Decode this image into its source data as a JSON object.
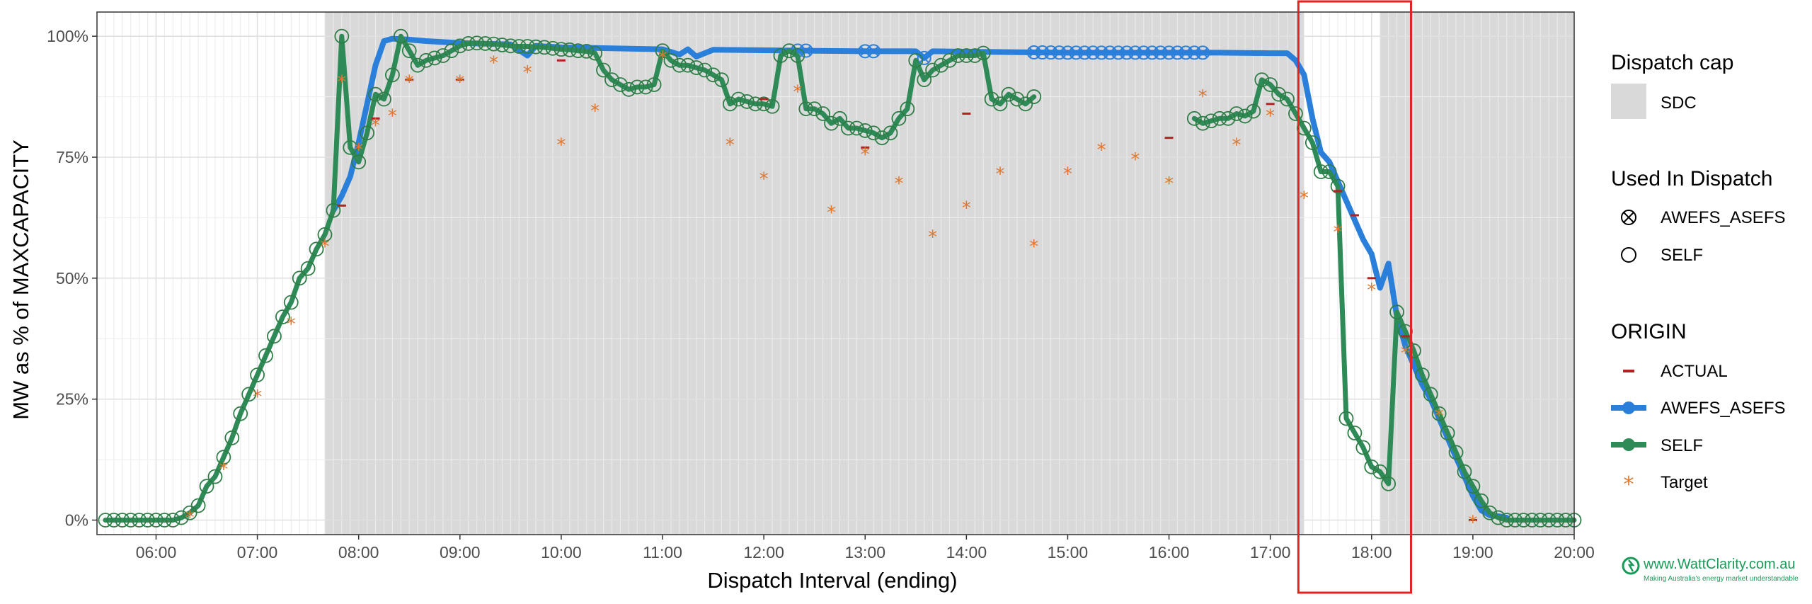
{
  "chart_data": {
    "type": "line",
    "title": "",
    "xlabel": "Dispatch Interval (ending)",
    "ylabel": "MW as % of MAXCAPACITY",
    "x_ticks": [
      "06:00",
      "07:00",
      "08:00",
      "09:00",
      "10:00",
      "11:00",
      "12:00",
      "13:00",
      "14:00",
      "15:00",
      "16:00",
      "17:00",
      "18:00",
      "19:00",
      "20:00"
    ],
    "y_ticks": [
      "0%",
      "25%",
      "50%",
      "75%",
      "100%"
    ],
    "xlim": [
      "05:25",
      "20:00"
    ],
    "ylim": [
      -3,
      105
    ],
    "dispatch_cap_shading": [
      {
        "label": "SDC",
        "start": "07:40",
        "end": "17:20"
      },
      {
        "label": "SDC",
        "start": "18:05",
        "end": "20:00"
      }
    ],
    "series": [
      {
        "name": "AWEFS_ASEFS",
        "color": "#2a7fdb",
        "points": [
          [
            "07:45",
            64
          ],
          [
            "07:50",
            67
          ],
          [
            "07:55",
            71
          ],
          [
            "08:00",
            78
          ],
          [
            "08:05",
            86
          ],
          [
            "08:10",
            94
          ],
          [
            "08:15",
            99
          ],
          [
            "08:20",
            99.5
          ],
          [
            "08:30",
            99.3
          ],
          [
            "08:40",
            99
          ],
          [
            "08:50",
            98.8
          ],
          [
            "09:00",
            98.6
          ],
          [
            "09:30",
            98.3
          ],
          [
            "09:40",
            96
          ],
          [
            "09:45",
            98
          ],
          [
            "10:00",
            97.7
          ],
          [
            "10:30",
            97.5
          ],
          [
            "11:00",
            97.3
          ],
          [
            "11:10",
            96.2
          ],
          [
            "11:15",
            97.3
          ],
          [
            "11:20",
            95.8
          ],
          [
            "11:30",
            97.2
          ],
          [
            "12:00",
            97.1
          ],
          [
            "12:30",
            97
          ],
          [
            "13:00",
            96.9
          ],
          [
            "13:30",
            96.9
          ],
          [
            "13:35",
            95.5
          ],
          [
            "13:40",
            96.9
          ],
          [
            "14:00",
            96.8
          ],
          [
            "14:30",
            96.7
          ],
          [
            "15:00",
            96.6
          ],
          [
            "15:30",
            96.6
          ],
          [
            "16:00",
            96.6
          ],
          [
            "16:30",
            96.6
          ],
          [
            "17:00",
            96.5
          ],
          [
            "17:10",
            96.5
          ],
          [
            "17:15",
            95
          ],
          [
            "17:20",
            92
          ],
          [
            "17:25",
            83
          ],
          [
            "17:30",
            76
          ],
          [
            "17:35",
            74
          ],
          [
            "17:40",
            70
          ],
          [
            "17:45",
            66
          ],
          [
            "17:50",
            62
          ],
          [
            "17:55",
            58
          ],
          [
            "18:00",
            55
          ],
          [
            "18:05",
            48
          ],
          [
            "18:10",
            53
          ],
          [
            "18:15",
            42
          ],
          [
            "18:20",
            36
          ],
          [
            "18:25",
            32
          ],
          [
            "18:30",
            28
          ],
          [
            "18:35",
            25
          ],
          [
            "18:40",
            21
          ],
          [
            "18:45",
            17
          ],
          [
            "18:50",
            13
          ],
          [
            "18:55",
            9
          ],
          [
            "19:00",
            5
          ],
          [
            "19:05",
            2
          ],
          [
            "19:10",
            1
          ],
          [
            "19:15",
            0.8
          ],
          [
            "19:20",
            0.5
          ]
        ]
      },
      {
        "name": "SELF",
        "color": "#2e8b57",
        "points": [
          [
            "05:30",
            0
          ],
          [
            "05:35",
            0
          ],
          [
            "05:40",
            0
          ],
          [
            "05:45",
            0
          ],
          [
            "05:50",
            0
          ],
          [
            "05:55",
            0
          ],
          [
            "06:00",
            0
          ],
          [
            "06:05",
            0
          ],
          [
            "06:10",
            0
          ],
          [
            "06:15",
            0.5
          ],
          [
            "06:20",
            1.5
          ],
          [
            "06:25",
            3
          ],
          [
            "06:30",
            7
          ],
          [
            "06:35",
            9
          ],
          [
            "06:40",
            13
          ],
          [
            "06:45",
            17
          ],
          [
            "06:50",
            22
          ],
          [
            "06:55",
            26
          ],
          [
            "07:00",
            30
          ],
          [
            "07:05",
            34
          ],
          [
            "07:10",
            38
          ],
          [
            "07:15",
            42
          ],
          [
            "07:20",
            45
          ],
          [
            "07:25",
            50
          ],
          [
            "07:30",
            52
          ],
          [
            "07:35",
            56
          ],
          [
            "07:40",
            59
          ],
          [
            "07:45",
            64
          ],
          [
            "07:50",
            100
          ],
          [
            "07:55",
            77
          ],
          [
            "08:00",
            74
          ],
          [
            "08:05",
            80
          ],
          [
            "08:10",
            88
          ],
          [
            "08:15",
            87
          ],
          [
            "08:20",
            92
          ],
          [
            "08:25",
            100
          ],
          [
            "08:30",
            97
          ],
          [
            "08:35",
            94
          ],
          [
            "08:40",
            95
          ],
          [
            "08:45",
            95.5
          ],
          [
            "08:50",
            96
          ],
          [
            "08:55",
            97
          ],
          [
            "09:00",
            98
          ],
          [
            "09:05",
            98.5
          ],
          [
            "09:10",
            98.6
          ],
          [
            "09:15",
            98.5
          ],
          [
            "09:20",
            98.4
          ],
          [
            "09:25",
            98.2
          ],
          [
            "09:30",
            98
          ],
          [
            "09:35",
            97.9
          ],
          [
            "09:40",
            97.9
          ],
          [
            "09:45",
            97.8
          ],
          [
            "09:50",
            97.7
          ],
          [
            "09:55",
            97.5
          ],
          [
            "10:00",
            97.3
          ],
          [
            "10:05",
            97.2
          ],
          [
            "10:10",
            97
          ],
          [
            "10:15",
            96.9
          ],
          [
            "10:20",
            96.5
          ],
          [
            "10:25",
            93
          ],
          [
            "10:30",
            91
          ],
          [
            "10:35",
            90
          ],
          [
            "10:40",
            89
          ],
          [
            "10:45",
            89.5
          ],
          [
            "10:50",
            89.5
          ],
          [
            "10:55",
            90
          ],
          [
            "11:00",
            97
          ],
          [
            "11:05",
            95
          ],
          [
            "11:10",
            94
          ],
          [
            "11:15",
            94
          ],
          [
            "11:20",
            93.5
          ],
          [
            "11:25",
            93
          ],
          [
            "11:30",
            92
          ],
          [
            "11:35",
            91
          ],
          [
            "11:40",
            86
          ],
          [
            "11:45",
            87
          ],
          [
            "11:50",
            86.5
          ],
          [
            "11:55",
            86
          ],
          [
            "12:00",
            86
          ],
          [
            "12:05",
            85.5
          ],
          [
            "12:10",
            96
          ],
          [
            "12:15",
            97
          ],
          [
            "12:20",
            96
          ],
          [
            "12:25",
            85
          ],
          [
            "12:30",
            85
          ],
          [
            "12:35",
            84
          ],
          [
            "12:40",
            82
          ],
          [
            "12:45",
            83
          ],
          [
            "12:50",
            81
          ],
          [
            "12:55",
            81
          ],
          [
            "13:00",
            80.5
          ],
          [
            "13:05",
            80
          ],
          [
            "13:10",
            79
          ],
          [
            "13:15",
            80
          ],
          [
            "13:20",
            83
          ],
          [
            "13:25",
            85
          ],
          [
            "13:30",
            95
          ],
          [
            "13:35",
            91
          ],
          [
            "13:40",
            93
          ],
          [
            "13:45",
            94
          ],
          [
            "13:50",
            95
          ],
          [
            "13:55",
            96
          ],
          [
            "14:00",
            96
          ],
          [
            "14:05",
            96
          ],
          [
            "14:10",
            96.5
          ],
          [
            "14:15",
            87
          ],
          [
            "14:20",
            86
          ],
          [
            "14:25",
            88
          ],
          [
            "14:30",
            87
          ],
          [
            "14:35",
            86
          ],
          [
            "14:40",
            87.5
          ]
        ]
      },
      {
        "name": "SELF",
        "color": "#2e8b57",
        "points": [
          [
            "16:15",
            83
          ],
          [
            "16:20",
            82
          ],
          [
            "16:25",
            82.5
          ],
          [
            "16:30",
            83
          ],
          [
            "16:35",
            83
          ],
          [
            "16:40",
            84
          ],
          [
            "16:45",
            83.5
          ],
          [
            "16:50",
            84.5
          ],
          [
            "16:55",
            91
          ],
          [
            "17:00",
            90
          ],
          [
            "17:05",
            88
          ],
          [
            "17:10",
            87
          ],
          [
            "17:15",
            84
          ],
          [
            "17:20",
            81
          ],
          [
            "17:25",
            78
          ],
          [
            "17:30",
            72
          ],
          [
            "17:35",
            72
          ],
          [
            "17:40",
            69
          ],
          [
            "17:45",
            21
          ],
          [
            "17:50",
            18
          ],
          [
            "17:55",
            15
          ],
          [
            "18:00",
            11
          ],
          [
            "18:05",
            10
          ],
          [
            "18:10",
            7.5
          ],
          [
            "18:15",
            43
          ],
          [
            "18:20",
            39
          ],
          [
            "18:25",
            35
          ],
          [
            "18:30",
            30
          ],
          [
            "18:35",
            26
          ],
          [
            "18:40",
            22
          ],
          [
            "18:45",
            18
          ],
          [
            "18:50",
            14
          ],
          [
            "18:55",
            10
          ],
          [
            "19:00",
            7
          ],
          [
            "19:05",
            4
          ],
          [
            "19:10",
            1.5
          ],
          [
            "19:15",
            0.5
          ],
          [
            "19:20",
            0
          ],
          [
            "19:25",
            0
          ],
          [
            "19:30",
            0
          ],
          [
            "19:35",
            0
          ],
          [
            "19:40",
            0
          ],
          [
            "19:45",
            0
          ],
          [
            "19:50",
            0
          ],
          [
            "19:55",
            0
          ],
          [
            "20:00",
            0
          ]
        ]
      },
      {
        "name": "Target",
        "color": "#e0782f",
        "points": [
          [
            "06:20",
            1
          ],
          [
            "06:40",
            11
          ],
          [
            "07:00",
            26
          ],
          [
            "07:20",
            41
          ],
          [
            "07:40",
            57
          ],
          [
            "07:50",
            91
          ],
          [
            "08:00",
            77
          ],
          [
            "08:10",
            82
          ],
          [
            "08:20",
            84
          ],
          [
            "08:30",
            91
          ],
          [
            "09:00",
            91
          ],
          [
            "09:20",
            95
          ],
          [
            "09:40",
            93
          ],
          [
            "10:00",
            78
          ],
          [
            "10:20",
            85
          ],
          [
            "11:00",
            96
          ],
          [
            "11:40",
            78
          ],
          [
            "12:00",
            71
          ],
          [
            "12:20",
            89
          ],
          [
            "12:40",
            64
          ],
          [
            "13:00",
            76
          ],
          [
            "13:20",
            70
          ],
          [
            "13:40",
            59
          ],
          [
            "14:00",
            65
          ],
          [
            "14:20",
            72
          ],
          [
            "14:40",
            57
          ],
          [
            "15:00",
            72
          ],
          [
            "15:20",
            77
          ],
          [
            "15:40",
            75
          ],
          [
            "16:00",
            70
          ],
          [
            "16:20",
            88
          ],
          [
            "16:40",
            78
          ],
          [
            "17:00",
            84
          ],
          [
            "17:20",
            67
          ],
          [
            "17:40",
            60
          ],
          [
            "18:00",
            48
          ],
          [
            "18:20",
            35
          ],
          [
            "18:40",
            22
          ],
          [
            "19:00",
            0
          ]
        ]
      },
      {
        "name": "ACTUAL",
        "color": "#b22222",
        "points": [
          [
            "07:50",
            65
          ],
          [
            "08:10",
            83
          ],
          [
            "08:30",
            91
          ],
          [
            "09:00",
            91
          ],
          [
            "10:00",
            95
          ],
          [
            "12:00",
            87
          ],
          [
            "13:00",
            77
          ],
          [
            "14:00",
            84
          ],
          [
            "16:00",
            79
          ],
          [
            "17:00",
            86
          ],
          [
            "17:40",
            68
          ],
          [
            "17:50",
            63
          ],
          [
            "18:00",
            50
          ],
          [
            "18:20",
            38
          ],
          [
            "19:00",
            0
          ]
        ]
      }
    ],
    "selected_window": {
      "start": "17:20",
      "end": "18:20",
      "color": "#e32222"
    },
    "legend": {
      "position": "right",
      "groups": [
        {
          "title": "Dispatch cap",
          "items": [
            "SDC"
          ]
        },
        {
          "title": "Used In Dispatch",
          "items": [
            "AWEFS_ASEFS",
            "SELF"
          ]
        },
        {
          "title": "ORIGIN",
          "items": [
            "ACTUAL",
            "AWEFS_ASEFS",
            "SELF",
            "Target"
          ]
        }
      ]
    }
  },
  "watermark": {
    "line1": "www.WattClarity.com.au",
    "line2": "Making Australia's energy market understandable"
  }
}
